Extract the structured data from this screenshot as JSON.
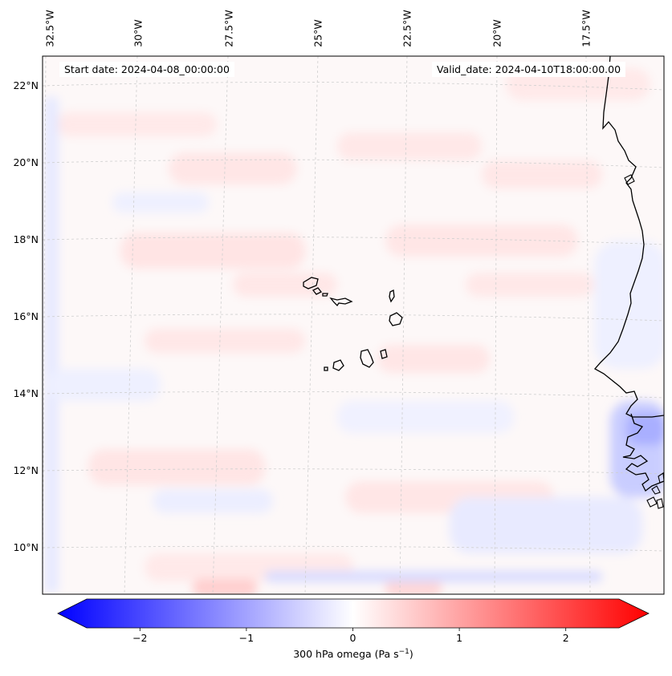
{
  "map": {
    "start_date": "Start date: 2024-04-08_00:00:00",
    "valid_date": "Valid_date: 2024-04-10T18:00:00.00",
    "longitude_labels": [
      "32.5°W",
      "30°W",
      "27.5°W",
      "25°W",
      "22.5°W",
      "20°W",
      "17.5°W"
    ],
    "latitude_labels": [
      "22°N",
      "20°N",
      "18°N",
      "16°N",
      "14°N",
      "12°N",
      "10°N"
    ],
    "extent": {
      "lon_west": -33.0,
      "lon_east": -15.5,
      "lat_south": 8.8,
      "lat_north": 22.8
    },
    "coastline_color": "#000000",
    "gridline_color": "#cccccc"
  },
  "colorbar": {
    "label_main": "300 hPa omega (Pa s",
    "label_exp": "−1",
    "label_close": ")",
    "vmin": -2.5,
    "vmax": 2.5,
    "ticks": [
      "−2",
      "−1",
      "0",
      "1",
      "2"
    ],
    "tick_values": [
      -2,
      -1,
      0,
      1,
      2
    ],
    "colormap": "bwr",
    "low_color": "#0000ff",
    "mid_color": "#ffffff",
    "high_color": "#ff0000"
  }
}
